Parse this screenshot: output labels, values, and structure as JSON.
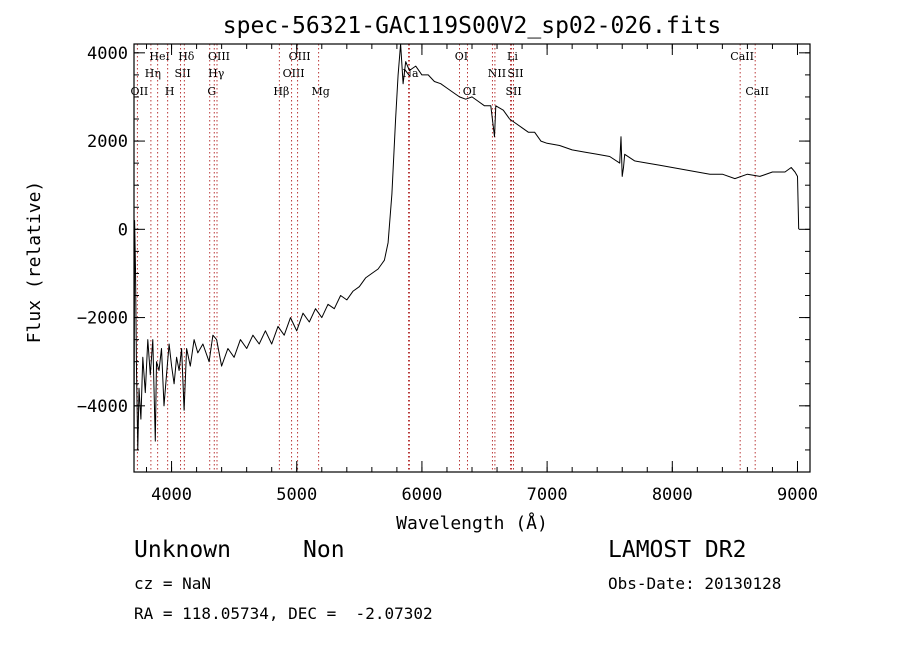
{
  "chart_data": {
    "type": "line",
    "title": "spec-56321-GAC119S00V2_sp02-026.fits",
    "xlabel": "Wavelength (Å)",
    "ylabel": "Flux (relative)",
    "xlim": [
      3700,
      9100
    ],
    "ylim": [
      -5500,
      4200
    ],
    "xticks": [
      {
        "value": 4000,
        "label": "4000"
      },
      {
        "value": 5000,
        "label": "5000"
      },
      {
        "value": 6000,
        "label": "6000"
      },
      {
        "value": 7000,
        "label": "7000"
      },
      {
        "value": 8000,
        "label": "8000"
      },
      {
        "value": 9000,
        "label": "9000"
      }
    ],
    "yticks": [
      {
        "value": -4000,
        "label": "−4000"
      },
      {
        "value": -2000,
        "label": "−2000"
      },
      {
        "value": 0,
        "label": "0"
      },
      {
        "value": 2000,
        "label": "2000"
      },
      {
        "value": 4000,
        "label": "4000"
      }
    ],
    "x_minor_step": 200,
    "y_minor_step": 500,
    "grid": false,
    "series": [
      {
        "color": "#000000",
        "points": [
          [
            3700,
            -5400
          ],
          [
            3705,
            200
          ],
          [
            3712,
            -900
          ],
          [
            3720,
            -3200
          ],
          [
            3730,
            -5000
          ],
          [
            3740,
            -3600
          ],
          [
            3755,
            -4300
          ],
          [
            3770,
            -2900
          ],
          [
            3790,
            -3700
          ],
          [
            3810,
            -2500
          ],
          [
            3830,
            -3300
          ],
          [
            3850,
            -2500
          ],
          [
            3870,
            -4800
          ],
          [
            3880,
            -3000
          ],
          [
            3900,
            -3200
          ],
          [
            3920,
            -2700
          ],
          [
            3940,
            -4000
          ],
          [
            3960,
            -3300
          ],
          [
            3980,
            -2600
          ],
          [
            4000,
            -3100
          ],
          [
            4020,
            -3500
          ],
          [
            4040,
            -2900
          ],
          [
            4060,
            -3200
          ],
          [
            4080,
            -2700
          ],
          [
            4100,
            -4100
          ],
          [
            4120,
            -2700
          ],
          [
            4150,
            -3100
          ],
          [
            4180,
            -2500
          ],
          [
            4210,
            -2800
          ],
          [
            4250,
            -2600
          ],
          [
            4300,
            -3000
          ],
          [
            4330,
            -2400
          ],
          [
            4360,
            -2500
          ],
          [
            4400,
            -3100
          ],
          [
            4450,
            -2700
          ],
          [
            4500,
            -2900
          ],
          [
            4550,
            -2500
          ],
          [
            4600,
            -2700
          ],
          [
            4650,
            -2400
          ],
          [
            4700,
            -2600
          ],
          [
            4750,
            -2300
          ],
          [
            4800,
            -2600
          ],
          [
            4850,
            -2200
          ],
          [
            4900,
            -2400
          ],
          [
            4950,
            -2000
          ],
          [
            5000,
            -2300
          ],
          [
            5050,
            -1900
          ],
          [
            5100,
            -2100
          ],
          [
            5150,
            -1800
          ],
          [
            5200,
            -2000
          ],
          [
            5250,
            -1700
          ],
          [
            5300,
            -1800
          ],
          [
            5350,
            -1500
          ],
          [
            5400,
            -1600
          ],
          [
            5450,
            -1400
          ],
          [
            5500,
            -1300
          ],
          [
            5550,
            -1100
          ],
          [
            5600,
            -1000
          ],
          [
            5650,
            -900
          ],
          [
            5700,
            -700
          ],
          [
            5730,
            -300
          ],
          [
            5760,
            800
          ],
          [
            5790,
            2500
          ],
          [
            5810,
            3500
          ],
          [
            5830,
            4200
          ],
          [
            5850,
            3300
          ],
          [
            5870,
            3800
          ],
          [
            5900,
            3600
          ],
          [
            5950,
            3700
          ],
          [
            6000,
            3500
          ],
          [
            6050,
            3500
          ],
          [
            6100,
            3350
          ],
          [
            6150,
            3300
          ],
          [
            6200,
            3200
          ],
          [
            6250,
            3100
          ],
          [
            6300,
            3000
          ],
          [
            6350,
            2950
          ],
          [
            6400,
            3000
          ],
          [
            6450,
            2900
          ],
          [
            6500,
            2800
          ],
          [
            6550,
            2800
          ],
          [
            6580,
            2100
          ],
          [
            6590,
            2800
          ],
          [
            6650,
            2700
          ],
          [
            6700,
            2500
          ],
          [
            6750,
            2400
          ],
          [
            6800,
            2300
          ],
          [
            6850,
            2200
          ],
          [
            6900,
            2200
          ],
          [
            6950,
            2000
          ],
          [
            7000,
            1950
          ],
          [
            7100,
            1900
          ],
          [
            7200,
            1800
          ],
          [
            7300,
            1750
          ],
          [
            7400,
            1700
          ],
          [
            7500,
            1650
          ],
          [
            7580,
            1500
          ],
          [
            7590,
            2100
          ],
          [
            7600,
            1200
          ],
          [
            7610,
            1400
          ],
          [
            7620,
            1700
          ],
          [
            7700,
            1550
          ],
          [
            7800,
            1500
          ],
          [
            7900,
            1450
          ],
          [
            8000,
            1400
          ],
          [
            8100,
            1350
          ],
          [
            8200,
            1300
          ],
          [
            8300,
            1250
          ],
          [
            8400,
            1250
          ],
          [
            8500,
            1150
          ],
          [
            8600,
            1250
          ],
          [
            8700,
            1200
          ],
          [
            8800,
            1300
          ],
          [
            8900,
            1300
          ],
          [
            8950,
            1400
          ],
          [
            8980,
            1300
          ],
          [
            9000,
            1200
          ],
          [
            9010,
            0
          ]
        ]
      }
    ],
    "lines": [
      {
        "x": 3727,
        "label": "OII",
        "row": 2
      },
      {
        "x": 3835,
        "label": "Hη",
        "row": 1
      },
      {
        "x": 3889,
        "label": "HeI",
        "row": 0
      },
      {
        "x": 3969,
        "label": "H",
        "row": 2
      },
      {
        "x": 4072,
        "label": "SII",
        "row": 1
      },
      {
        "x": 4102,
        "label": "Hδ",
        "row": 0
      },
      {
        "x": 4305,
        "label": "G",
        "row": 2
      },
      {
        "x": 4341,
        "label": "Hγ",
        "row": 1
      },
      {
        "x": 4363,
        "label": "OIII",
        "row": 0
      },
      {
        "x": 4861,
        "label": "Hβ",
        "row": 2
      },
      {
        "x": 4959,
        "label": "OIII",
        "row": 1
      },
      {
        "x": 5007,
        "label": "OIII",
        "row": 0
      },
      {
        "x": 5175,
        "label": "Mg",
        "row": 2
      },
      {
        "x": 5893,
        "label": "Na",
        "row": 1
      },
      {
        "x": 5900,
        "label": "",
        "row": 0
      },
      {
        "x": 6300,
        "label": "OI",
        "row": 0
      },
      {
        "x": 6364,
        "label": "OI",
        "row": 2
      },
      {
        "x": 6563,
        "label": "",
        "row": 0
      },
      {
        "x": 6583,
        "label": "NII",
        "row": 1
      },
      {
        "x": 6707,
        "label": "Li",
        "row": 0
      },
      {
        "x": 6716,
        "label": "SII",
        "row": 2
      },
      {
        "x": 6731,
        "label": "SII",
        "row": 1
      },
      {
        "x": 8542,
        "label": "CaII",
        "row": 0
      },
      {
        "x": 8662,
        "label": "CaII",
        "row": 2
      }
    ]
  },
  "info": {
    "class_label": "Unknown",
    "subclass_label": "Non",
    "survey_label": "LAMOST DR2",
    "redshift_text": "cz = NaN",
    "obs_date_text": "Obs-Date: 20130128",
    "coords_text": "RA = 118.05734, DEC =  -2.07302"
  }
}
